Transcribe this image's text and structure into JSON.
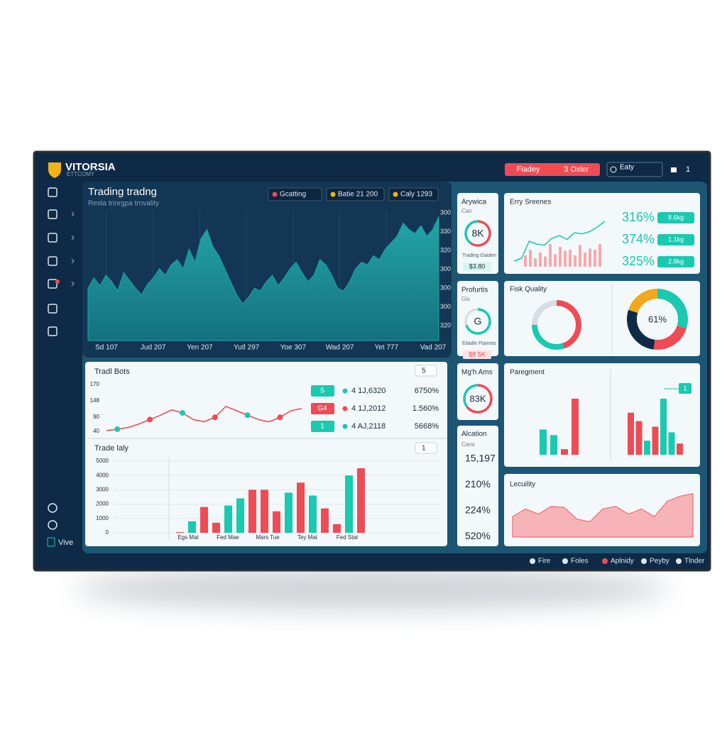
{
  "brand": {
    "name": "VITORSIA",
    "tagline": "ETTCOMY"
  },
  "header": {
    "buttons": [
      "Fiadey",
      "3 Oxler"
    ],
    "account": "Eaty",
    "page_num": "1"
  },
  "sidebar": {
    "footer": "Vive"
  },
  "main_chart": {
    "title": "Trading tradng",
    "subtitle": "Resta trinrgpa trnvality",
    "filters": [
      "Gcatting",
      "Batie 21 200",
      "Caly 1293"
    ],
    "x_labels": [
      "Sd 107",
      "Jud 207",
      "Yen 207",
      "Yutl 297",
      "Yoe 307",
      "Wad 207",
      "Yet 777",
      "Vad 207"
    ],
    "y_labels": [
      "300",
      "330",
      "320",
      "300",
      "300",
      "300",
      "320"
    ],
    "color": "#1e9aa0",
    "ylim": [
      0,
      100
    ],
    "values": [
      40,
      48,
      42,
      50,
      45,
      38,
      52,
      46,
      40,
      35,
      43,
      48,
      55,
      50,
      58,
      62,
      55,
      70,
      60,
      78,
      85,
      72,
      65,
      55,
      45,
      35,
      28,
      33,
      40,
      38,
      45,
      50,
      42,
      48,
      55,
      60,
      52,
      45,
      50,
      62,
      58,
      50,
      40,
      38,
      45,
      55,
      60,
      58,
      65,
      62,
      70,
      75,
      80,
      90,
      85,
      82,
      88,
      80,
      85,
      95
    ]
  },
  "trade_bots": {
    "title": "Tradl Bots",
    "dropdown": "5",
    "y_labels": [
      "170",
      "148",
      "90",
      "40"
    ],
    "ylim": [
      0,
      100
    ],
    "values": [
      5,
      8,
      12,
      20,
      30,
      40,
      52,
      45,
      30,
      25,
      35,
      60,
      50,
      40,
      30,
      25,
      35,
      50,
      55
    ],
    "rows": [
      {
        "badge": "5",
        "value": "4 1J,6320",
        "pct": "6750%",
        "color": "#19c9b0"
      },
      {
        "badge": "G4",
        "value": "4 1J,2012",
        "pct": "1.560%",
        "color": "#ef4b55"
      },
      {
        "badge": "1",
        "value": "4 AJ,2118",
        "pct": "5668%",
        "color": "#19c9b0"
      }
    ]
  },
  "trade_daily": {
    "title": "Trade laly",
    "dropdown": "1",
    "y_labels": [
      "5000",
      "4000",
      "3000",
      "2000",
      "1000",
      "0"
    ],
    "x_labels": [
      "Egs Mat",
      "Fed Mae",
      "Mars Tue",
      "Tey Mat",
      "Fed Stat"
    ],
    "ylim": [
      0,
      5000
    ],
    "values": [
      50,
      800,
      1800,
      700,
      1900,
      2400,
      3000,
      3000,
      1500,
      2800,
      3500,
      2600,
      1700,
      600,
      4000,
      4500
    ],
    "colors": [
      "#ef4b55",
      "#19c9b0",
      "#ef4b55",
      "#ef4b55",
      "#19c9b0",
      "#19c9b0",
      "#ef4b55",
      "#ef4b55",
      "#ef4b55",
      "#19c9b0",
      "#ef4b55",
      "#19c9b0",
      "#ef4b55",
      "#ef4b55",
      "#19c9b0",
      "#ef4b55"
    ]
  },
  "cards": [
    {
      "title": "Arywica",
      "sub": "Can",
      "gauge_label": "8K",
      "caption": "Trading Gaiden",
      "pill": "$3.80",
      "gauge": [
        60,
        40
      ],
      "colors": [
        "#ef4b55",
        "#19c9b0"
      ]
    },
    {
      "title": "Profurtis",
      "sub": "Gis",
      "gauge_label": "G",
      "caption": "Eiladle Ftaimes",
      "pill": "$8 5K",
      "gauge": [
        70,
        30
      ],
      "colors": [
        "#19c9b0",
        "#d7dde2"
      ]
    },
    {
      "title": "Mg'h Ams",
      "gauge_label": "83K",
      "gauge": [
        65,
        35
      ],
      "colors": [
        "#ef4b55",
        "#19c9b0"
      ]
    }
  ],
  "allocation": {
    "title": "Alcation",
    "sub": "Cans",
    "items": [
      "15,197",
      "210%",
      "224%",
      "520%"
    ]
  },
  "entry": {
    "title": "Erry Sreenes",
    "ylim": [
      0,
      100
    ],
    "line": [
      10,
      15,
      45,
      40,
      38,
      50,
      55,
      48,
      60,
      58,
      62,
      70,
      80
    ],
    "bars": [
      20,
      30,
      15,
      25,
      18,
      40,
      22,
      35,
      28,
      30,
      20,
      38,
      25,
      32,
      30,
      40
    ],
    "stats": [
      {
        "value": "316%",
        "badge": "8.6kg"
      },
      {
        "value": "374%",
        "badge": "1.1kg"
      },
      {
        "value": "325%",
        "badge": "2.8kg"
      }
    ]
  },
  "risk": {
    "title": "Fisk Quality",
    "donut1": [
      45,
      30,
      25
    ],
    "colors1": [
      "#ef4b55",
      "#19c9b0",
      "#d7dde2"
    ],
    "donut2": [
      30,
      22,
      28,
      20
    ],
    "colors2": [
      "#19c9b0",
      "#ef4b55",
      "#0e2a47",
      "#f2a81d"
    ],
    "center": "61%"
  },
  "payment": {
    "title": "Paregment",
    "legend": "1",
    "ylim": [
      0,
      100
    ],
    "left": [
      45,
      35,
      10,
      100
    ],
    "left_colors": [
      "#19c9b0",
      "#19c9b0",
      "#ef4b55",
      "#ef4b55"
    ],
    "right": [
      75,
      60,
      25,
      50,
      100,
      40,
      20
    ],
    "right_colors": [
      "#ef4b55",
      "#ef4b55",
      "#19c9b0",
      "#ef4b55",
      "#19c9b0",
      "#19c9b0",
      "#ef4b55"
    ]
  },
  "liquidity": {
    "title": "Lecuility",
    "ylim": [
      0,
      100
    ],
    "values": [
      40,
      55,
      45,
      60,
      58,
      35,
      30,
      55,
      60,
      45,
      55,
      40,
      70,
      80,
      85
    ]
  },
  "footer": [
    "Fire",
    "Foles",
    "Aplnidy",
    "Peyby",
    "Tlnder"
  ]
}
